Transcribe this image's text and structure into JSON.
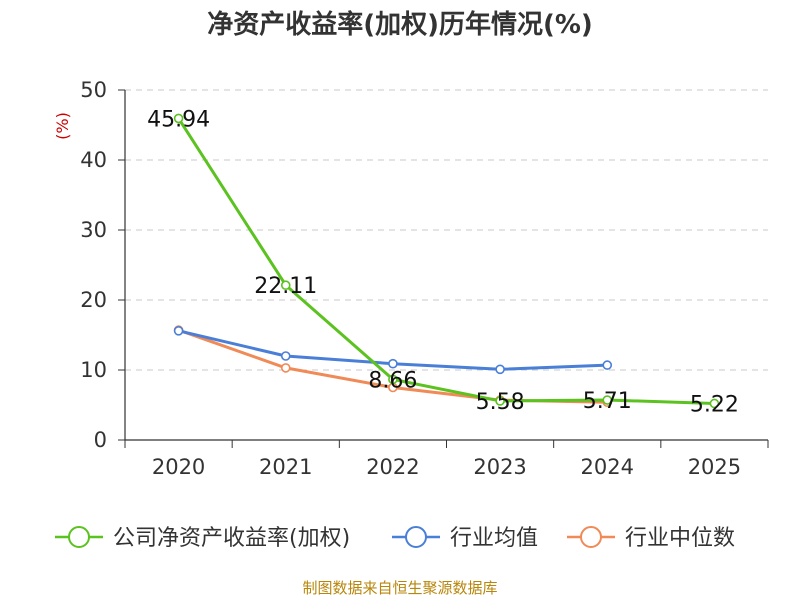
{
  "chart_data": {
    "type": "line",
    "title": "净资产收益率(加权)历年情况(%)",
    "ylabel": "(%)",
    "xlabel": "",
    "categories": [
      "2020",
      "2021",
      "2022",
      "2023",
      "2024",
      "2025"
    ],
    "ylim": [
      0,
      50
    ],
    "yticks": [
      0,
      10,
      20,
      30,
      40,
      50
    ],
    "grid": true,
    "legend_position": "bottom",
    "series": [
      {
        "name": "公司净资产收益率(加权)",
        "color": "#5bc21f",
        "values": [
          45.94,
          22.11,
          8.66,
          5.58,
          5.71,
          5.22
        ],
        "labels": [
          "45.94",
          "22.11",
          "8.66",
          "5.58",
          "5.71",
          "5.22"
        ]
      },
      {
        "name": "行业均值",
        "color": "#4a7fd8",
        "values": [
          15.6,
          12.0,
          10.9,
          10.1,
          10.7,
          null
        ]
      },
      {
        "name": "行业中位数",
        "color": "#f08a56",
        "values": [
          15.7,
          10.3,
          7.5,
          5.7,
          5.4,
          null
        ]
      }
    ],
    "source": "制图数据来自恒生聚源数据库"
  }
}
